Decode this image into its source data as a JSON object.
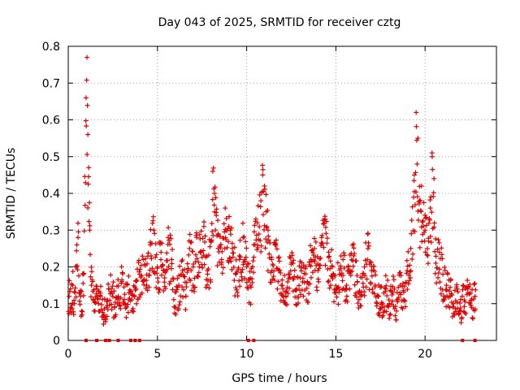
{
  "chart_data": {
    "type": "scatter",
    "title": "Day 043 of 2025, SRMTID for receiver cztg",
    "xlabel": "GPS time / hours",
    "ylabel": "SRMTID / TECUs",
    "xlim": [
      0,
      24
    ],
    "ylim": [
      0,
      0.8
    ],
    "xticks": [
      0,
      5,
      10,
      15,
      20
    ],
    "yticks": [
      0,
      0.1,
      0.2,
      0.3,
      0.4,
      0.5,
      0.6,
      0.7,
      0.8
    ],
    "grid": true,
    "marker": "+",
    "color": "#e00000",
    "series": [
      {
        "name": "SRMTID",
        "x": [
          0.05,
          0.15,
          0.25,
          0.35,
          0.45,
          0.55,
          0.65,
          0.75,
          0.85,
          1.0,
          1.05,
          1.1,
          1.15,
          1.2,
          1.3,
          1.4,
          1.5,
          1.6,
          1.7,
          1.8,
          2.0,
          2.2,
          2.4,
          2.6,
          2.8,
          3.0,
          3.2,
          3.4,
          3.6,
          3.8,
          4.0,
          4.2,
          4.4,
          4.6,
          4.8,
          5.0,
          5.2,
          5.4,
          5.6,
          5.8,
          6.0,
          6.2,
          6.4,
          6.6,
          6.8,
          7.0,
          7.2,
          7.4,
          7.6,
          7.8,
          8.0,
          8.1,
          8.2,
          8.3,
          8.4,
          8.6,
          8.8,
          9.0,
          9.2,
          9.4,
          9.6,
          9.8,
          10.0,
          10.2,
          10.4,
          10.6,
          10.8,
          10.9,
          11.0,
          11.1,
          11.2,
          11.4,
          11.6,
          11.8,
          12.0,
          12.2,
          12.4,
          12.6,
          12.8,
          13.0,
          13.2,
          13.4,
          13.6,
          13.8,
          14.0,
          14.2,
          14.4,
          14.6,
          14.8,
          15.0,
          15.2,
          15.4,
          15.6,
          15.8,
          16.0,
          16.2,
          16.4,
          16.6,
          16.8,
          17.0,
          17.2,
          17.4,
          17.6,
          17.8,
          18.0,
          18.2,
          18.4,
          18.6,
          18.8,
          19.0,
          19.2,
          19.4,
          19.5,
          19.6,
          19.7,
          19.8,
          20.0,
          20.2,
          20.3,
          20.4,
          20.5,
          20.6,
          20.8,
          21.0,
          21.2,
          21.4,
          21.6,
          21.8,
          22.0,
          22.2,
          22.4,
          22.6,
          22.8
        ],
        "y": [
          0.12,
          0.09,
          0.15,
          0.1,
          0.2,
          0.28,
          0.13,
          0.08,
          0.18,
          0.66,
          0.77,
          0.56,
          0.47,
          0.3,
          0.15,
          0.11,
          0.08,
          0.14,
          0.1,
          0.12,
          0.07,
          0.11,
          0.14,
          0.09,
          0.12,
          0.16,
          0.1,
          0.13,
          0.08,
          0.14,
          0.18,
          0.22,
          0.15,
          0.26,
          0.3,
          0.2,
          0.24,
          0.17,
          0.28,
          0.22,
          0.09,
          0.15,
          0.19,
          0.12,
          0.25,
          0.2,
          0.28,
          0.24,
          0.31,
          0.19,
          0.27,
          0.46,
          0.4,
          0.34,
          0.29,
          0.22,
          0.36,
          0.31,
          0.25,
          0.18,
          0.22,
          0.28,
          0.2,
          0.15,
          0.26,
          0.32,
          0.38,
          0.45,
          0.42,
          0.35,
          0.3,
          0.22,
          0.26,
          0.19,
          0.15,
          0.12,
          0.18,
          0.21,
          0.14,
          0.17,
          0.2,
          0.16,
          0.22,
          0.25,
          0.19,
          0.28,
          0.33,
          0.24,
          0.2,
          0.14,
          0.18,
          0.22,
          0.15,
          0.19,
          0.23,
          0.16,
          0.12,
          0.2,
          0.25,
          0.19,
          0.15,
          0.12,
          0.09,
          0.14,
          0.1,
          0.13,
          0.08,
          0.15,
          0.11,
          0.19,
          0.25,
          0.45,
          0.62,
          0.55,
          0.38,
          0.42,
          0.3,
          0.27,
          0.36,
          0.5,
          0.44,
          0.21,
          0.24,
          0.18,
          0.15,
          0.12,
          0.1,
          0.14,
          0.08,
          0.11,
          0.13,
          0.09,
          0.12
        ],
        "zero_points_x": [
          1.0,
          1.6,
          2.1,
          2.3,
          2.8,
          3.5,
          3.75,
          4.0,
          10.1,
          10.4,
          22.1,
          22.8
        ]
      }
    ]
  }
}
